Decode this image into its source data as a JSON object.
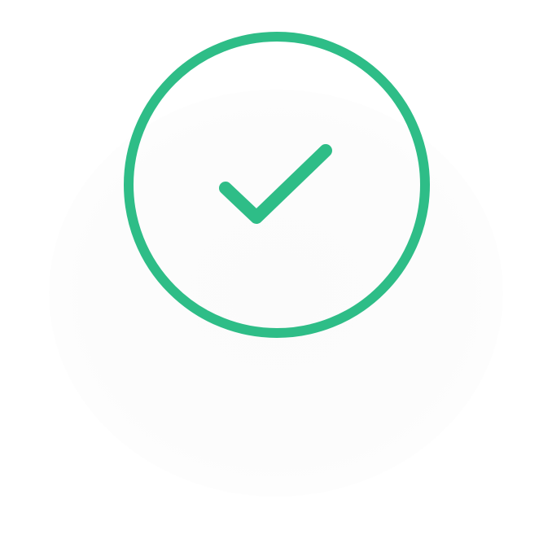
{
  "status": {
    "state": "success",
    "icon": "check-circle-icon",
    "accent_color": "#2ebd87"
  }
}
